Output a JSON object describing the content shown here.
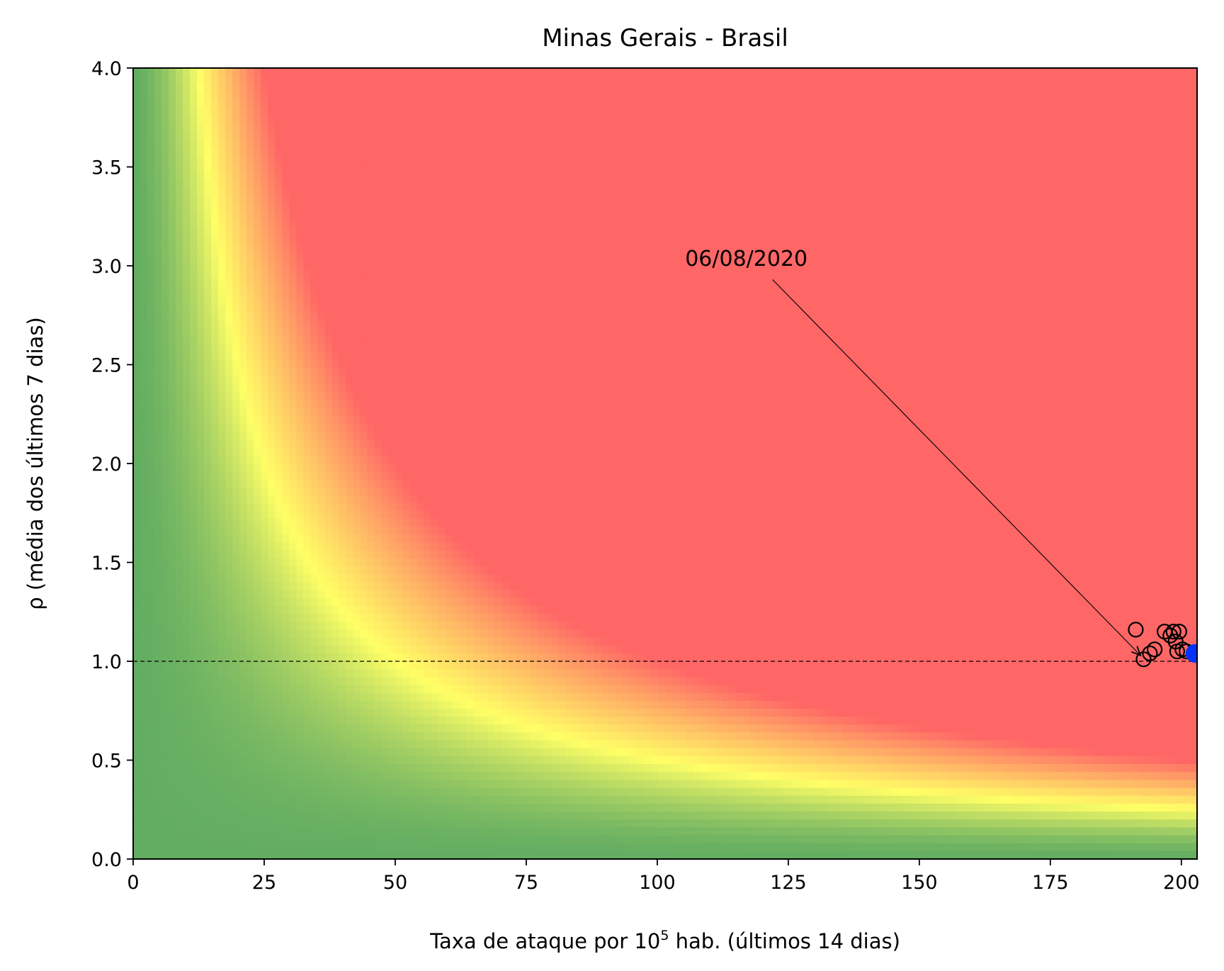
{
  "chart_data": {
    "type": "scatter",
    "title": "Minas Gerais - Brasil",
    "xlabel": {
      "prefix": "Taxa de ataque por 10",
      "superscript": "5",
      "suffix": " hab. (últimos 14 dias)"
    },
    "ylabel": "ρ (média dos últimos 7 dias)",
    "xlim": [
      0,
      203
    ],
    "ylim": [
      0,
      4.0
    ],
    "xticks": [
      0,
      25,
      50,
      75,
      100,
      125,
      150,
      175,
      200
    ],
    "xtick_labels": [
      "0",
      "25",
      "50",
      "75",
      "100",
      "125",
      "150",
      "175",
      "200"
    ],
    "yticks": [
      0,
      0.5,
      1.0,
      1.5,
      2.0,
      2.5,
      3.0,
      3.5,
      4.0
    ],
    "ytick_labels": [
      "0.0",
      "0.5",
      "1.0",
      "1.5",
      "2.0",
      "2.5",
      "3.0",
      "3.5",
      "4.0"
    ],
    "grid": false,
    "background": {
      "type": "heatmap",
      "description_free": true,
      "colors": {
        "low": "#63ad62",
        "mid": "#ffff66",
        "high": "#ff6666"
      }
    },
    "reference_line": {
      "y": 1.0,
      "style": "dashed",
      "color": "#000000"
    },
    "series": [
      {
        "marker": "open-circle",
        "color": "#000000",
        "points": [
          {
            "x": 191.3,
            "y": 1.16
          },
          {
            "x": 192.8,
            "y": 1.01
          },
          {
            "x": 194.0,
            "y": 1.04
          },
          {
            "x": 194.9,
            "y": 1.06
          },
          {
            "x": 196.8,
            "y": 1.15
          },
          {
            "x": 197.9,
            "y": 1.13
          },
          {
            "x": 198.5,
            "y": 1.15
          },
          {
            "x": 198.9,
            "y": 1.1
          },
          {
            "x": 199.2,
            "y": 1.05
          },
          {
            "x": 199.6,
            "y": 1.15
          },
          {
            "x": 200.2,
            "y": 1.06
          },
          {
            "x": 201.0,
            "y": 1.05
          }
        ]
      },
      {
        "marker": "filled-circle",
        "color": "#0033ff",
        "points": [
          {
            "x": 202.6,
            "y": 1.04
          }
        ]
      }
    ],
    "annotation": {
      "text": "06/08/2020",
      "text_x": 117,
      "text_y": 3.0,
      "arrow_from": [
        122,
        2.93
      ],
      "arrow_to": [
        192.2,
        1.03
      ]
    },
    "colors": {
      "green": "#63ad62",
      "yellow": "#ffff66",
      "red": "#ff6666",
      "blue_point": "#0033ff"
    }
  }
}
